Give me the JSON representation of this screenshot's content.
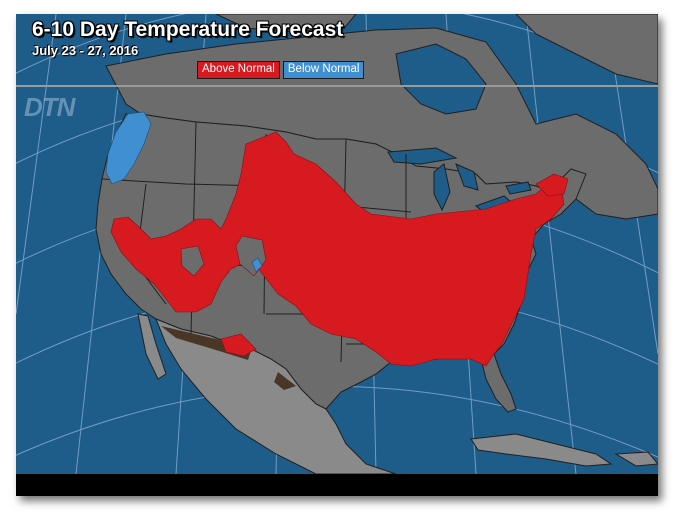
{
  "title": "6-10 Day Temperature Forecast",
  "subtitle": "July 23 - 27, 2016",
  "brand": "DTN",
  "legend": [
    {
      "label": "Above Normal",
      "color": "#d71920"
    },
    {
      "label": "Below Normal",
      "color": "#3f8fd2"
    }
  ],
  "colors": {
    "ocean": "#1e5c8a",
    "land": "#6c6c6c",
    "land_outside": "#8a8a8a",
    "above_normal": "#d71920",
    "below_normal": "#3f8fd2",
    "border_lines": "#202020",
    "mexico_trim": "#4a3626"
  }
}
